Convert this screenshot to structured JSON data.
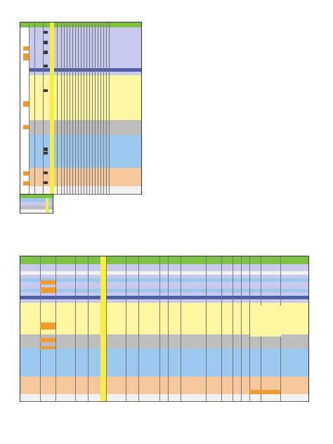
{
  "colors": {
    "header_green": "#7dc242",
    "lavender": "#c7c9ee",
    "blue": "#9ac8ef",
    "light_yellow": "#fdf6a0",
    "yellow": "#f7ef3a",
    "gray": "#bdbdbd",
    "dark_blue": "#4b5fa8",
    "peach": "#f5c79a",
    "orange": "#f29b2b",
    "white": "#ffffff",
    "pale": "#f2f2f2"
  },
  "top_sheet": {
    "bands": [
      "lavender",
      "lavender",
      "lavender",
      "lavender",
      "lavender",
      "lavender",
      "lavender",
      "lavender",
      "lavender",
      "lavender",
      "lavender",
      "dark_blue",
      "lavender",
      "light_yellow",
      "light_yellow",
      "light_yellow",
      "light_yellow",
      "light_yellow",
      "light_yellow",
      "light_yellow",
      "light_yellow",
      "light_yellow",
      "light_yellow",
      "light_yellow",
      "light_yellow",
      "gray",
      "gray",
      "gray",
      "gray",
      "blue",
      "blue",
      "blue",
      "blue",
      "blue",
      "blue",
      "blue",
      "blue",
      "blue",
      "peach",
      "peach",
      "peach",
      "peach",
      "peach",
      "pale",
      "pale"
    ]
  },
  "bottom_sheet": {
    "bands": [
      "lavender",
      "lavender",
      "pale",
      "lavender",
      "blue",
      "lavender",
      "lavender",
      "blue",
      "lavender",
      "dark_blue",
      "lavender",
      "light_yellow",
      "light_yellow",
      "light_yellow",
      "light_yellow",
      "light_yellow",
      "light_yellow",
      "light_yellow",
      "light_yellow",
      "light_yellow",
      "gray",
      "gray",
      "gray",
      "gray",
      "blue",
      "blue",
      "blue",
      "blue",
      "blue",
      "blue",
      "blue",
      "blue",
      "peach",
      "peach",
      "peach",
      "peach",
      "peach",
      "pale",
      "pale"
    ]
  },
  "legend": {
    "bands": [
      "header_green",
      "blue",
      "lavender",
      "gray",
      "pale"
    ]
  }
}
